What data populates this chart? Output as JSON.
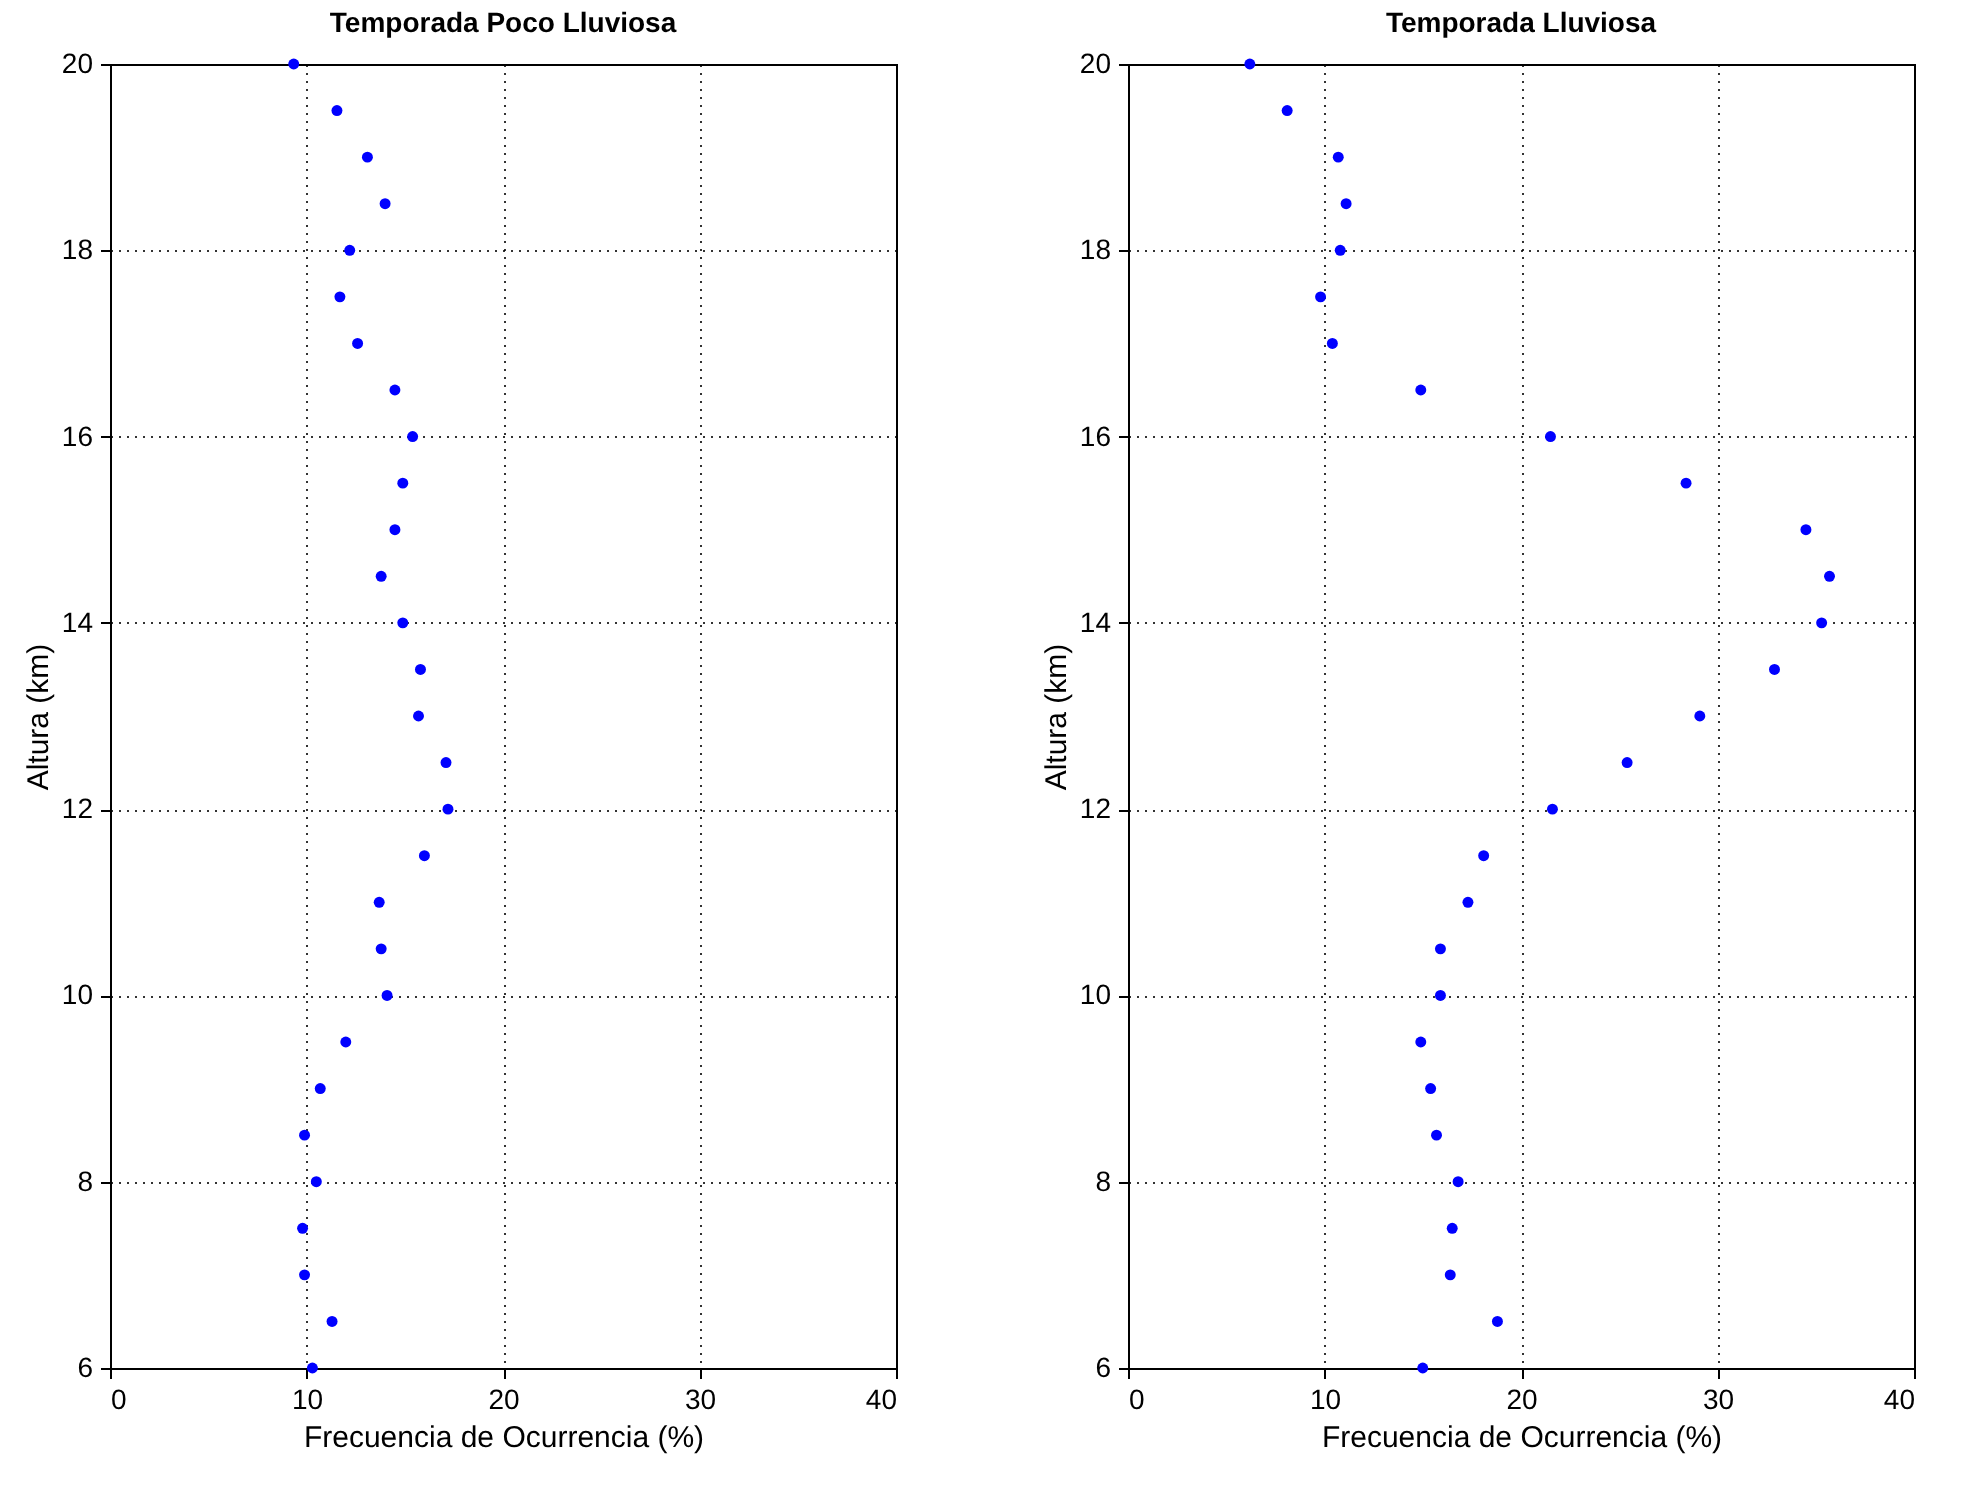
{
  "chart_data": [
    {
      "type": "scatter",
      "title": "Temporada Poco Lluviosa",
      "xlabel": "Frecuencia de Ocurrencia (%)",
      "ylabel": "Altura (km)",
      "x": [
        9.35,
        11.55,
        13.1,
        14.0,
        12.2,
        11.7,
        12.6,
        14.5,
        15.4,
        14.9,
        14.5,
        13.8,
        14.9,
        15.8,
        15.7,
        17.1,
        17.2,
        16.0,
        13.7,
        13.8,
        14.1,
        12.0,
        10.7,
        9.9,
        10.5,
        9.8,
        9.9,
        11.3,
        10.3
      ],
      "series": [
        {
          "color": "#0000ff",
          "values": [
            20,
            19.5,
            19,
            18.5,
            18,
            17.5,
            17,
            16.5,
            16,
            15.5,
            15,
            14.5,
            14,
            13.5,
            13,
            12.5,
            12,
            11.5,
            11,
            10.5,
            10,
            9.5,
            9,
            8.5,
            8,
            7.5,
            7,
            6.5,
            6
          ]
        }
      ],
      "xlim": [
        0,
        40
      ],
      "xticks": [
        0,
        10,
        20,
        30,
        40
      ],
      "ylim": [
        6,
        20
      ],
      "yticks": [
        6,
        8,
        10,
        12,
        14,
        16,
        18,
        20
      ],
      "grid": true,
      "marker": "circle"
    },
    {
      "type": "scatter",
      "title": "Temporada Lluviosa",
      "xlabel": "Frecuencia de Ocurrencia (%)",
      "ylabel": "Altura (km)",
      "x": [
        6.2,
        8.1,
        10.7,
        11.1,
        10.8,
        9.8,
        10.4,
        14.9,
        21.5,
        28.4,
        34.5,
        35.7,
        35.3,
        32.9,
        29.1,
        25.4,
        21.6,
        18.1,
        17.3,
        15.9,
        15.9,
        14.9,
        15.4,
        15.7,
        16.8,
        16.5,
        16.4,
        18.8,
        15.0
      ],
      "series": [
        {
          "color": "#0000ff",
          "values": [
            20,
            19.5,
            19,
            18.5,
            18,
            17.5,
            17,
            16.5,
            16,
            15.5,
            15,
            14.5,
            14,
            13.5,
            13,
            12.5,
            12,
            11.5,
            11,
            10.5,
            10,
            9.5,
            9,
            8.5,
            8,
            7.5,
            7,
            6.5,
            6
          ]
        }
      ],
      "xlim": [
        0,
        40
      ],
      "xticks": [
        0,
        10,
        20,
        30,
        40
      ],
      "ylim": [
        6,
        20
      ],
      "yticks": [
        6,
        8,
        10,
        12,
        14,
        16,
        18,
        20
      ],
      "grid": true,
      "marker": "circle"
    }
  ]
}
